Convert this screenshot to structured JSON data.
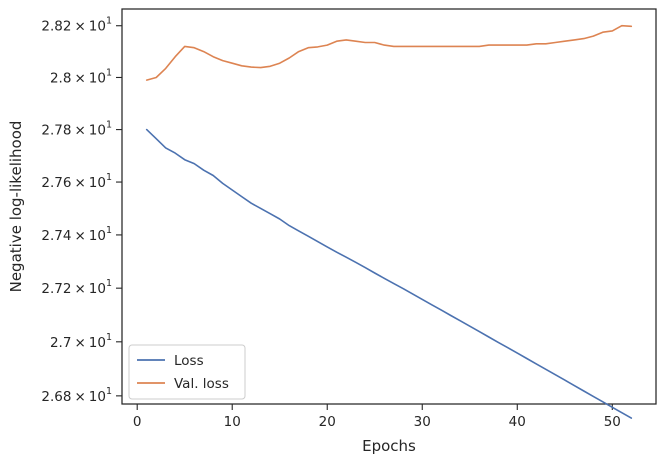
{
  "chart_data": {
    "type": "line",
    "title": "",
    "xlabel": "Epochs",
    "ylabel": "Negative log-likelihood",
    "x_scale": "linear",
    "y_scale": "log",
    "xlim": [
      -1.6,
      54.6
    ],
    "ylim": [
      26.77,
      28.265
    ],
    "x_ticks": [
      0,
      10,
      20,
      30,
      40,
      50
    ],
    "x_tick_labels": [
      "0",
      "10",
      "20",
      "30",
      "40",
      "50"
    ],
    "y_ticks": [
      26.8,
      27.0,
      27.2,
      27.4,
      27.6,
      27.8,
      28.0,
      28.2
    ],
    "y_tick_labels": [
      {
        "mantissa": "2.68",
        "times": "×",
        "base": "10",
        "exp": "1"
      },
      {
        "mantissa": "2.7",
        "times": "×",
        "base": "10",
        "exp": "1"
      },
      {
        "mantissa": "2.72",
        "times": "×",
        "base": "10",
        "exp": "1"
      },
      {
        "mantissa": "2.74",
        "times": "×",
        "base": "10",
        "exp": "1"
      },
      {
        "mantissa": "2.76",
        "times": "×",
        "base": "10",
        "exp": "1"
      },
      {
        "mantissa": "2.78",
        "times": "×",
        "base": "10",
        "exp": "1"
      },
      {
        "mantissa": "2.8",
        "times": "×",
        "base": "10",
        "exp": "1"
      },
      {
        "mantissa": "2.82",
        "times": "×",
        "base": "10",
        "exp": "1"
      }
    ],
    "grid": false,
    "legend": {
      "position": "lower-left"
    },
    "x": [
      1,
      2,
      3,
      4,
      5,
      6,
      7,
      8,
      9,
      10,
      11,
      12,
      13,
      14,
      15,
      16,
      17,
      18,
      19,
      20,
      21,
      22,
      23,
      24,
      25,
      26,
      27,
      28,
      29,
      30,
      31,
      32,
      33,
      34,
      35,
      36,
      37,
      38,
      39,
      40,
      41,
      42,
      43,
      44,
      45,
      46,
      47,
      48,
      49,
      50,
      51,
      52
    ],
    "series": [
      {
        "name": "Loss",
        "color": "#4c72b0",
        "values": [
          27.8,
          27.765,
          27.73,
          27.71,
          27.685,
          27.67,
          27.645,
          27.625,
          27.595,
          27.57,
          27.545,
          27.52,
          27.5,
          27.48,
          27.46,
          27.435,
          27.415,
          27.395,
          27.375,
          27.355,
          27.335,
          27.316,
          27.297,
          27.277,
          27.257,
          27.237,
          27.217,
          27.198,
          27.178,
          27.158,
          27.138,
          27.118,
          27.098,
          27.078,
          27.058,
          27.038,
          27.018,
          26.998,
          26.978,
          26.958,
          26.938,
          26.918,
          26.898,
          26.878,
          26.858,
          26.838,
          26.818,
          26.798,
          26.778,
          26.758,
          26.738,
          26.718
        ]
      },
      {
        "name": "Val. loss",
        "color": "#dd8452",
        "values": [
          27.99,
          28.0,
          28.035,
          28.08,
          28.12,
          28.115,
          28.1,
          28.08,
          28.065,
          28.055,
          28.045,
          28.04,
          28.038,
          28.043,
          28.055,
          28.075,
          28.1,
          28.115,
          28.118,
          28.125,
          28.14,
          28.145,
          28.14,
          28.135,
          28.135,
          28.125,
          28.12,
          28.12,
          28.12,
          28.12,
          28.12,
          28.12,
          28.12,
          28.12,
          28.12,
          28.12,
          28.125,
          28.125,
          28.125,
          28.125,
          28.125,
          28.13,
          28.13,
          28.135,
          28.14,
          28.145,
          28.15,
          28.16,
          28.175,
          28.18,
          28.2,
          28.198
        ]
      }
    ]
  }
}
